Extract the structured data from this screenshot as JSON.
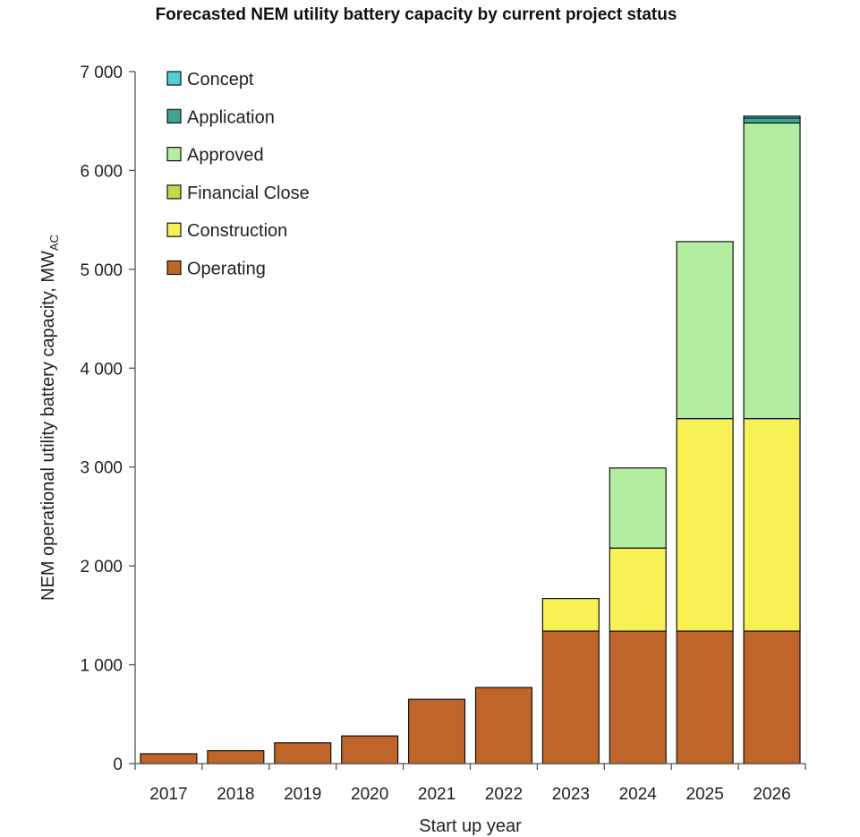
{
  "chart_data": {
    "type": "bar",
    "stacked": true,
    "title": "Forecasted NEM utility battery capacity by current project status",
    "xlabel": "Start up year",
    "ylabel": "NEM operational utility battery capacity, MW",
    "ylabel_subscript": "AC",
    "ylim": [
      0,
      7000
    ],
    "yticks": [
      0,
      1000,
      2000,
      3000,
      4000,
      5000,
      6000,
      7000
    ],
    "ytick_labels": [
      "0",
      "1 000",
      "2 000",
      "3 000",
      "4 000",
      "5 000",
      "6 000",
      "7 000"
    ],
    "grid": false,
    "legend_position": "top-left",
    "categories": [
      "2017",
      "2018",
      "2019",
      "2020",
      "2021",
      "2022",
      "2023",
      "2024",
      "2025",
      "2026"
    ],
    "series": [
      {
        "name": "Operating",
        "color": "#C0652A",
        "values": [
          100,
          130,
          210,
          280,
          650,
          770,
          1340,
          1340,
          1340,
          1340
        ]
      },
      {
        "name": "Construction",
        "color": "#F8F155",
        "values": [
          0,
          0,
          0,
          0,
          0,
          0,
          330,
          840,
          2150,
          2150
        ]
      },
      {
        "name": "Financial Close",
        "color": "#C9D64A",
        "values": [
          0,
          0,
          0,
          0,
          0,
          0,
          0,
          0,
          0,
          0
        ]
      },
      {
        "name": "Approved",
        "color": "#B2EDA0",
        "values": [
          0,
          0,
          0,
          0,
          0,
          0,
          0,
          810,
          1790,
          2990
        ]
      },
      {
        "name": "Application",
        "color": "#3FA590",
        "values": [
          0,
          0,
          0,
          0,
          0,
          0,
          0,
          0,
          0,
          50
        ]
      },
      {
        "name": "Concept",
        "color": "#4FD0D6",
        "values": [
          0,
          0,
          0,
          0,
          0,
          0,
          0,
          0,
          0,
          20
        ]
      }
    ],
    "legend_order": [
      "Concept",
      "Application",
      "Approved",
      "Financial Close",
      "Construction",
      "Operating"
    ]
  }
}
